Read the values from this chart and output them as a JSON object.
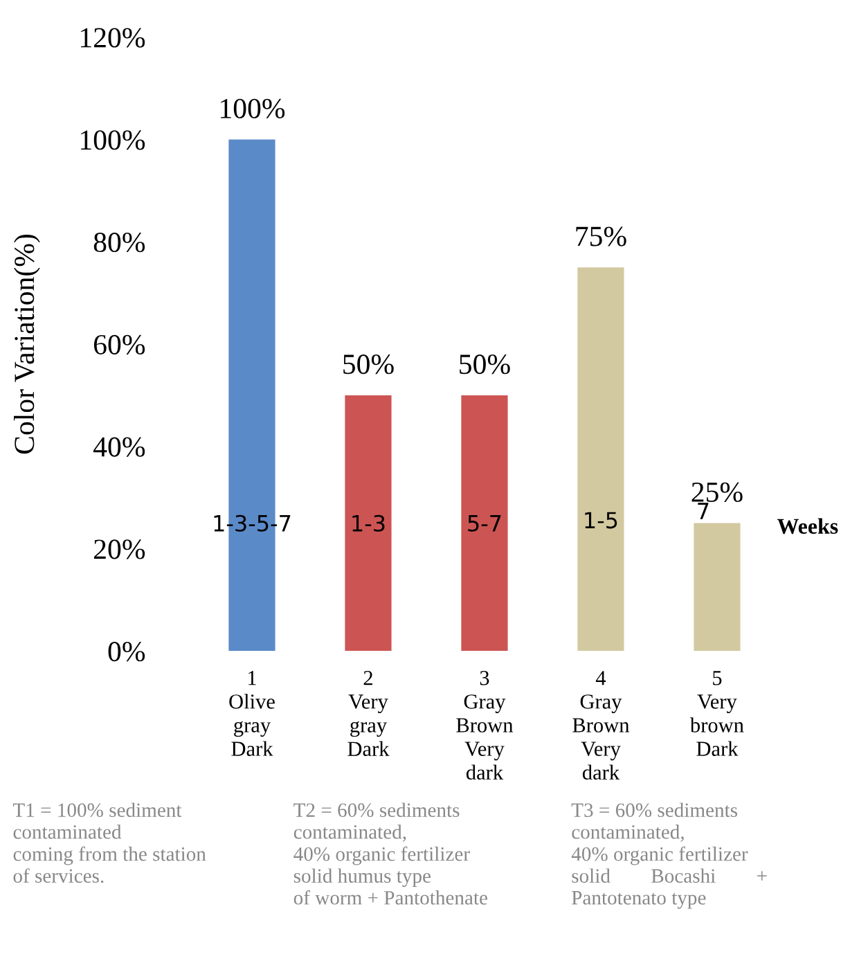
{
  "chart_data": {
    "type": "bar",
    "ylabel": "Color Variation(%)",
    "categories": [
      "1\nOlive\ngray\nDark",
      "2\nVery\ngray\nDark",
      "3\nGray\nBrown\nVery\ndark",
      "4\nGray\nBrown\nVery\ndark",
      "5\nVery\nbrown\nDark"
    ],
    "values": [
      100,
      50,
      50,
      75,
      25
    ],
    "colors": [
      "#5a8ac8",
      "#cc5553",
      "#cc5553",
      "#d3c9a0",
      "#d3c9a0"
    ],
    "value_labels": [
      "100%",
      "50%",
      "50%",
      "75%",
      "25%"
    ],
    "ylim": [
      0,
      120
    ],
    "yticks": [
      {
        "value": 0,
        "label": "0%"
      },
      {
        "value": 20,
        "label": "20%"
      },
      {
        "value": 40,
        "label": "40%"
      },
      {
        "value": 60,
        "label": "60%"
      },
      {
        "value": 80,
        "label": "80%"
      },
      {
        "value": 100,
        "label": "100%"
      },
      {
        "value": 120,
        "label": "120%"
      }
    ],
    "grid": false,
    "annotations": [
      "1-3-5-7",
      "1-3",
      "5-7",
      "1-5",
      "7",
      "Weeks",
      "T1 = 100% sediment\ncontaminated\ncoming from the station\nof services.",
      "T2 = 60% sediments\ncontaminated,\n40% organic fertilizer\nsolid humus type\nof worm + Pantothenate",
      "T3 = 60% sediments\ncontaminated,\n40% organic fertilizer\nsolid        Bocashi        +\nPantotenato type"
    ]
  }
}
